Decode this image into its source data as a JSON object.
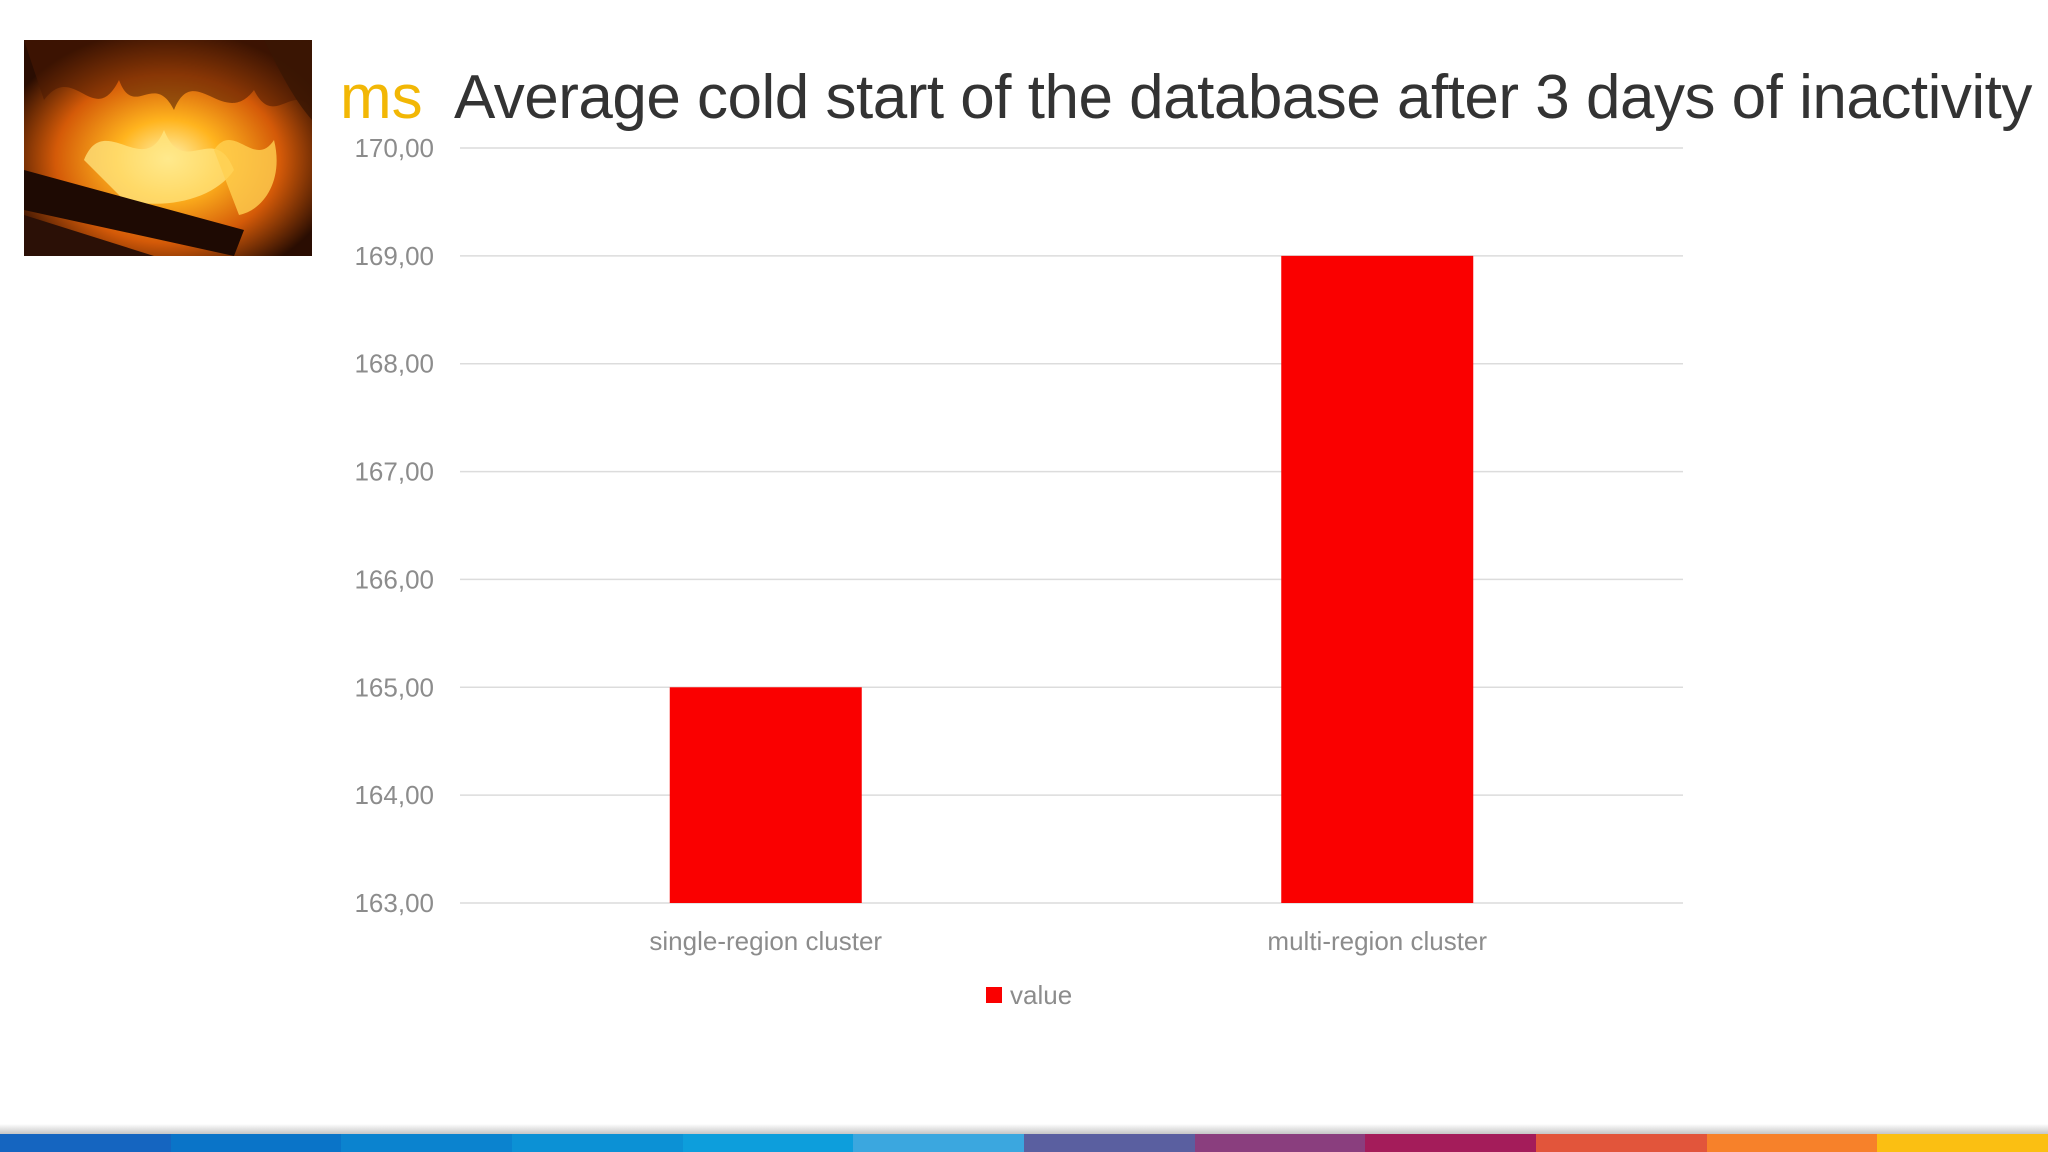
{
  "header": {
    "unit": "ms",
    "title": "Average cold start of the database after 3 days of inactivity"
  },
  "image": {
    "icon": "fire-photo"
  },
  "chart_data": {
    "type": "bar",
    "title": "Average cold start of the database after 3 days of inactivity",
    "ylabel": "ms",
    "xlabel": "",
    "categories": [
      "single-region cluster",
      "multi-region cluster"
    ],
    "series": [
      {
        "name": "value",
        "values": [
          165,
          169
        ],
        "color": "#fa0000"
      }
    ],
    "ylim": [
      163,
      170
    ],
    "yticks": [
      163,
      164,
      165,
      166,
      167,
      168,
      169,
      170
    ],
    "ytick_labels": [
      "163,00",
      "164,00",
      "165,00",
      "166,00",
      "167,00",
      "168,00",
      "169,00",
      "170,00"
    ],
    "grid": true,
    "legend_position": "bottom-center"
  },
  "footer": {
    "stripe_colors": [
      "#1565c0",
      "#0a74c8",
      "#0b83cf",
      "#0c91d5",
      "#0d9edc",
      "#3ba7df",
      "#5a5fa0",
      "#8a3e7e",
      "#a41c5a",
      "#e2553b",
      "#f7812a",
      "#fbbf12"
    ]
  }
}
